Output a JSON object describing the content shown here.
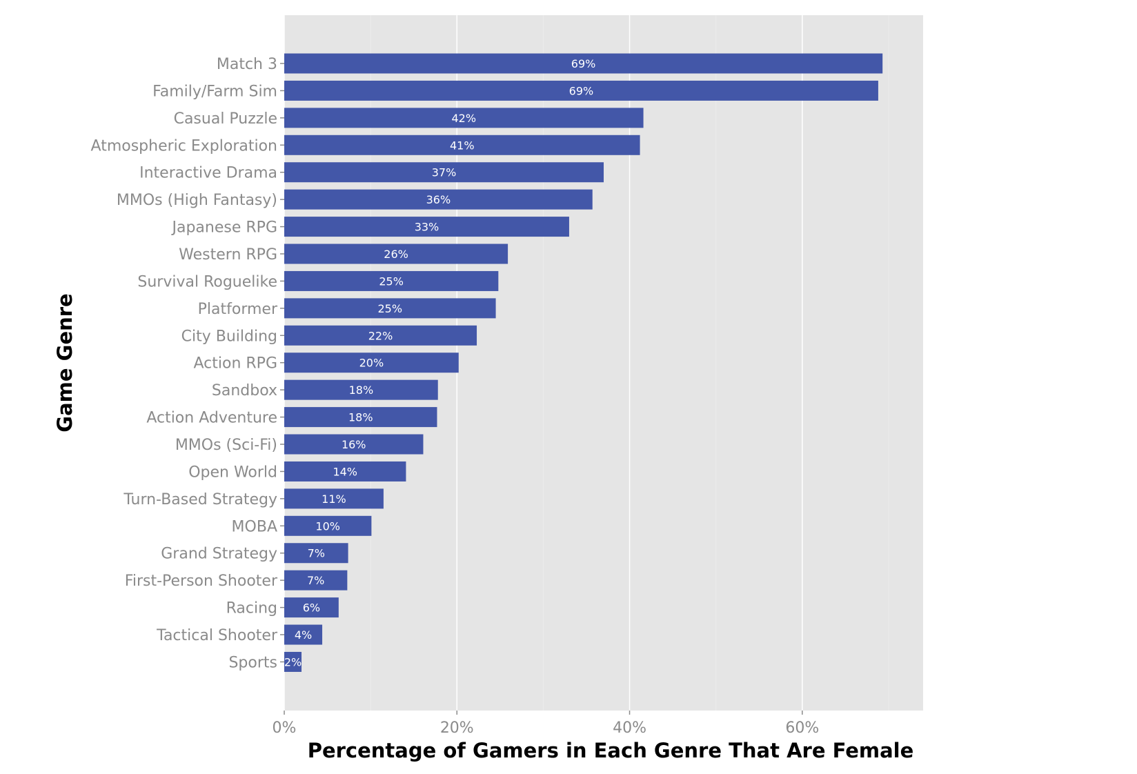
{
  "chart_data": {
    "type": "bar",
    "orientation": "horizontal",
    "xlabel": "Percentage of Gamers in Each Genre That Are Female",
    "ylabel": "Game Genre",
    "xlim": [
      0,
      74
    ],
    "x_ticks": [
      {
        "value": 0,
        "label": "0%"
      },
      {
        "value": 20,
        "label": "20%"
      },
      {
        "value": 40,
        "label": "40%"
      },
      {
        "value": 60,
        "label": "60%"
      }
    ],
    "grid": true,
    "categories": [
      "Match 3",
      "Family/Farm Sim",
      "Casual Puzzle",
      "Atmospheric Exploration",
      "Interactive Drama",
      "MMOs (High Fantasy)",
      "Japanese RPG",
      "Western RPG",
      "Survival Roguelike",
      "Platformer",
      "City Building",
      "Action RPG",
      "Sandbox",
      "Action Adventure",
      "MMOs (Sci-Fi)",
      "Open World",
      "Turn-Based Strategy",
      "MOBA",
      "Grand Strategy",
      "First-Person Shooter",
      "Racing",
      "Tactical Shooter",
      "Sports"
    ],
    "values": [
      69.3,
      68.8,
      41.6,
      41.2,
      37.0,
      35.7,
      33.0,
      25.9,
      24.8,
      24.5,
      22.3,
      20.2,
      17.8,
      17.7,
      16.1,
      14.1,
      11.5,
      10.1,
      7.4,
      7.3,
      6.3,
      4.4,
      2.0
    ],
    "data_labels": [
      "69%",
      "69%",
      "42%",
      "41%",
      "37%",
      "36%",
      "33%",
      "26%",
      "25%",
      "25%",
      "22%",
      "20%",
      "18%",
      "18%",
      "16%",
      "14%",
      "11%",
      "10%",
      "7%",
      "7%",
      "6%",
      "4%",
      "2%"
    ],
    "colors": {
      "bar": "#4357a8",
      "panel": "#e5e5e5",
      "grid": "#ffffff",
      "tick_text": "#8a8a8a"
    }
  }
}
